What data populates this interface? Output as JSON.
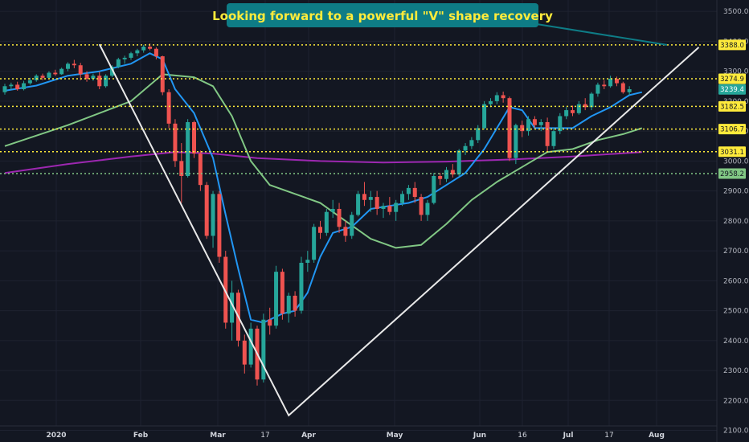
{
  "chart_data": {
    "type": "candlestick",
    "annotation": {
      "text": "Looking forward to a powerful \"V\" shape recovery",
      "target_price": 3388.0,
      "box_color": "#0e7c86",
      "text_color": "#ffeb3b"
    },
    "x_ticks": [
      "2020",
      "Feb",
      "Mar",
      "17",
      "Apr",
      "May",
      "Jun",
      "16",
      "Jul",
      "17",
      "Aug"
    ],
    "y_ticks": [
      2100,
      2200,
      2300,
      2400,
      2500,
      2600,
      2700,
      2800,
      2900,
      3000,
      3100,
      3200,
      3300,
      3400,
      3500
    ],
    "ylim": [
      2080,
      3530
    ],
    "horizontal_levels": [
      {
        "value": 3388.0,
        "label": "3388.0",
        "color": "#ffeb3b"
      },
      {
        "value": 3274.9,
        "label": "3274.9",
        "color": "#ffeb3b"
      },
      {
        "value": 3182.5,
        "label": "3182.5",
        "color": "#ffeb3b"
      },
      {
        "value": 3106.7,
        "label": "3106.7",
        "color": "#ffeb3b"
      },
      {
        "value": 3031.1,
        "label": "3031.1",
        "color": "#ffeb3b"
      },
      {
        "value": 2958.2,
        "label": "2958.2",
        "color": "#81c784"
      }
    ],
    "last_price": {
      "value": 3239.4,
      "label": "3239.4",
      "color": "#26a69a"
    },
    "candle_colors": {
      "up": "#26a69a",
      "down": "#ef5350"
    },
    "candles": [
      [
        3230,
        3258,
        3222,
        3250
      ],
      [
        3250,
        3262,
        3240,
        3255
      ],
      [
        3255,
        3265,
        3235,
        3240
      ],
      [
        3240,
        3268,
        3236,
        3260
      ],
      [
        3260,
        3278,
        3255,
        3270
      ],
      [
        3270,
        3290,
        3265,
        3285
      ],
      [
        3285,
        3292,
        3270,
        3278
      ],
      [
        3278,
        3300,
        3275,
        3295
      ],
      [
        3295,
        3305,
        3285,
        3290
      ],
      [
        3290,
        3312,
        3288,
        3308
      ],
      [
        3308,
        3330,
        3300,
        3325
      ],
      [
        3325,
        3338,
        3310,
        3320
      ],
      [
        3320,
        3328,
        3270,
        3290
      ],
      [
        3290,
        3300,
        3265,
        3275
      ],
      [
        3275,
        3292,
        3268,
        3285
      ],
      [
        3285,
        3298,
        3240,
        3250
      ],
      [
        3250,
        3290,
        3245,
        3285
      ],
      [
        3285,
        3320,
        3280,
        3315
      ],
      [
        3315,
        3345,
        3310,
        3340
      ],
      [
        3340,
        3352,
        3325,
        3345
      ],
      [
        3345,
        3365,
        3338,
        3360
      ],
      [
        3360,
        3375,
        3350,
        3370
      ],
      [
        3370,
        3388,
        3362,
        3382
      ],
      [
        3382,
        3393,
        3370,
        3375
      ],
      [
        3375,
        3380,
        3340,
        3350
      ],
      [
        3350,
        3352,
        3220,
        3230
      ],
      [
        3230,
        3240,
        3110,
        3125
      ],
      [
        3125,
        3140,
        2980,
        3000
      ],
      [
        3000,
        3060,
        2860,
        2950
      ],
      [
        2950,
        3140,
        2945,
        3130
      ],
      [
        3130,
        3135,
        3010,
        3025
      ],
      [
        3025,
        3035,
        2900,
        2920
      ],
      [
        2920,
        2930,
        2740,
        2750
      ],
      [
        2750,
        2900,
        2710,
        2890
      ],
      [
        2890,
        2900,
        2660,
        2680
      ],
      [
        2680,
        2700,
        2440,
        2460
      ],
      [
        2460,
        2600,
        2400,
        2560
      ],
      [
        2560,
        2570,
        2380,
        2400
      ],
      [
        2400,
        2420,
        2290,
        2320
      ],
      [
        2320,
        2460,
        2310,
        2440
      ],
      [
        2440,
        2450,
        2250,
        2270
      ],
      [
        2270,
        2490,
        2260,
        2470
      ],
      [
        2470,
        2510,
        2420,
        2450
      ],
      [
        2450,
        2650,
        2440,
        2630
      ],
      [
        2630,
        2640,
        2470,
        2490
      ],
      [
        2490,
        2560,
        2460,
        2550
      ],
      [
        2550,
        2565,
        2480,
        2500
      ],
      [
        2500,
        2680,
        2490,
        2660
      ],
      [
        2660,
        2700,
        2630,
        2670
      ],
      [
        2670,
        2790,
        2660,
        2780
      ],
      [
        2780,
        2800,
        2740,
        2760
      ],
      [
        2760,
        2840,
        2750,
        2830
      ],
      [
        2830,
        2870,
        2810,
        2840
      ],
      [
        2840,
        2860,
        2760,
        2780
      ],
      [
        2780,
        2800,
        2730,
        2750
      ],
      [
        2750,
        2830,
        2740,
        2820
      ],
      [
        2820,
        2900,
        2815,
        2890
      ],
      [
        2890,
        2930,
        2850,
        2870
      ],
      [
        2870,
        2900,
        2830,
        2880
      ],
      [
        2880,
        2900,
        2820,
        2840
      ],
      [
        2840,
        2860,
        2810,
        2850
      ],
      [
        2850,
        2880,
        2820,
        2830
      ],
      [
        2830,
        2870,
        2800,
        2860
      ],
      [
        2860,
        2900,
        2850,
        2890
      ],
      [
        2890,
        2920,
        2870,
        2910
      ],
      [
        2910,
        2930,
        2860,
        2880
      ],
      [
        2880,
        2890,
        2800,
        2820
      ],
      [
        2820,
        2870,
        2800,
        2860
      ],
      [
        2860,
        2960,
        2855,
        2950
      ],
      [
        2950,
        2960,
        2920,
        2940
      ],
      [
        2940,
        2980,
        2930,
        2970
      ],
      [
        2970,
        2990,
        2945,
        2955
      ],
      [
        2955,
        3040,
        2950,
        3035
      ],
      [
        3035,
        3060,
        3020,
        3050
      ],
      [
        3050,
        3080,
        3040,
        3070
      ],
      [
        3070,
        3120,
        3060,
        3110
      ],
      [
        3110,
        3200,
        3105,
        3190
      ],
      [
        3190,
        3210,
        3180,
        3200
      ],
      [
        3200,
        3230,
        3190,
        3220
      ],
      [
        3220,
        3232,
        3195,
        3210
      ],
      [
        3210,
        3215,
        3000,
        3010
      ],
      [
        3010,
        3125,
        2990,
        3120
      ],
      [
        3120,
        3135,
        3080,
        3100
      ],
      [
        3100,
        3150,
        3085,
        3140
      ],
      [
        3140,
        3150,
        3110,
        3120
      ],
      [
        3120,
        3140,
        3100,
        3130
      ],
      [
        3130,
        3145,
        3030,
        3050
      ],
      [
        3050,
        3110,
        3040,
        3100
      ],
      [
        3100,
        3160,
        3090,
        3150
      ],
      [
        3150,
        3180,
        3140,
        3170
      ],
      [
        3170,
        3185,
        3150,
        3160
      ],
      [
        3160,
        3200,
        3155,
        3190
      ],
      [
        3190,
        3210,
        3170,
        3180
      ],
      [
        3180,
        3230,
        3170,
        3225
      ],
      [
        3225,
        3262,
        3215,
        3255
      ],
      [
        3255,
        3270,
        3240,
        3250
      ],
      [
        3250,
        3285,
        3245,
        3275
      ],
      [
        3275,
        3282,
        3250,
        3260
      ],
      [
        3260,
        3265,
        3225,
        3230
      ],
      [
        3230,
        3250,
        3220,
        3240
      ]
    ],
    "ma_fast_20": {
      "color": "#2196f3",
      "points": [
        [
          0,
          3235
        ],
        [
          5,
          3252
        ],
        [
          10,
          3285
        ],
        [
          15,
          3300
        ],
        [
          20,
          3325
        ],
        [
          23,
          3360
        ],
        [
          25,
          3340
        ],
        [
          27,
          3240
        ],
        [
          30,
          3160
        ],
        [
          33,
          3010
        ],
        [
          35,
          2820
        ],
        [
          37,
          2640
        ],
        [
          39,
          2470
        ],
        [
          41,
          2460
        ],
        [
          44,
          2490
        ],
        [
          46,
          2500
        ],
        [
          48,
          2560
        ],
        [
          50,
          2680
        ],
        [
          52,
          2760
        ],
        [
          55,
          2780
        ],
        [
          58,
          2840
        ],
        [
          61,
          2850
        ],
        [
          64,
          2860
        ],
        [
          67,
          2880
        ],
        [
          70,
          2920
        ],
        [
          73,
          2960
        ],
        [
          76,
          3040
        ],
        [
          78,
          3110
        ],
        [
          80,
          3180
        ],
        [
          82,
          3170
        ],
        [
          84,
          3110
        ],
        [
          87,
          3110
        ],
        [
          90,
          3110
        ],
        [
          93,
          3150
        ],
        [
          96,
          3180
        ],
        [
          99,
          3220
        ],
        [
          101,
          3230
        ]
      ]
    },
    "ma_mid_50": {
      "color": "#81c784",
      "points": [
        [
          0,
          3050
        ],
        [
          10,
          3120
        ],
        [
          20,
          3200
        ],
        [
          25,
          3290
        ],
        [
          30,
          3280
        ],
        [
          33,
          3250
        ],
        [
          36,
          3150
        ],
        [
          39,
          3000
        ],
        [
          42,
          2920
        ],
        [
          46,
          2890
        ],
        [
          50,
          2860
        ],
        [
          54,
          2800
        ],
        [
          58,
          2740
        ],
        [
          62,
          2710
        ],
        [
          66,
          2720
        ],
        [
          70,
          2790
        ],
        [
          74,
          2870
        ],
        [
          78,
          2930
        ],
        [
          82,
          2980
        ],
        [
          86,
          3030
        ],
        [
          90,
          3040
        ],
        [
          94,
          3070
        ],
        [
          98,
          3090
        ],
        [
          101,
          3110
        ]
      ]
    },
    "ma_slow_200": {
      "color": "#9c27b0",
      "points": [
        [
          0,
          2960
        ],
        [
          10,
          2990
        ],
        [
          20,
          3015
        ],
        [
          27,
          3030
        ],
        [
          33,
          3025
        ],
        [
          40,
          3010
        ],
        [
          50,
          3000
        ],
        [
          60,
          2995
        ],
        [
          70,
          2998
        ],
        [
          80,
          3005
        ],
        [
          90,
          3015
        ],
        [
          101,
          3030
        ]
      ]
    },
    "v_line": {
      "color": "#e8e8e8",
      "left_top": [
        15,
        3390
      ],
      "bottom": [
        45,
        2150
      ],
      "right_top": [
        110,
        3380
      ]
    }
  }
}
